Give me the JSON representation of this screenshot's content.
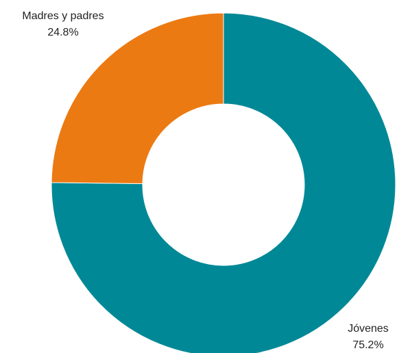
{
  "chart_data": {
    "type": "pie",
    "donut": true,
    "title": "",
    "slices": [
      {
        "label": "Jóvenes",
        "value": 75.2,
        "display": "75.2%",
        "color": "#008896"
      },
      {
        "label": "Madres y padres",
        "value": 24.8,
        "display": "24.8%",
        "color": "#EC7A12"
      }
    ],
    "legend": "none",
    "label_position": "outside"
  }
}
